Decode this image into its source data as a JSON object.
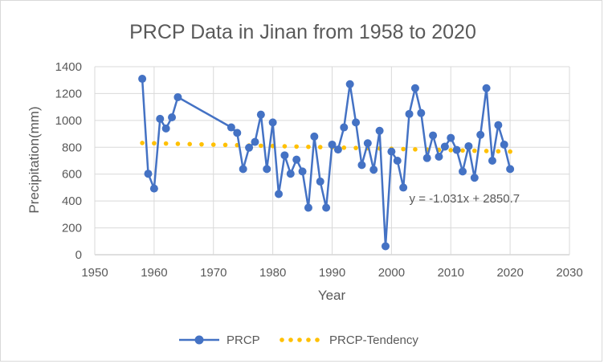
{
  "chart_data": {
    "type": "scatter",
    "title": "PRCP Data in Jinan from 1958 to 2020",
    "xlabel": "Year",
    "ylabel": "Precipitation(mm)",
    "xlim": [
      1950,
      2030
    ],
    "ylim": [
      0,
      1400
    ],
    "xticks": [
      1950,
      1960,
      1970,
      1980,
      1990,
      2000,
      2010,
      2020,
      2030
    ],
    "yticks": [
      0,
      200,
      400,
      600,
      800,
      1000,
      1200,
      1400
    ],
    "grid": "both",
    "legend_position": "bottom",
    "series": [
      {
        "name": "PRCP",
        "style": "line-with-markers",
        "color": "#4472c4",
        "points": [
          [
            1958,
            1310
          ],
          [
            1959,
            603
          ],
          [
            1960,
            493
          ],
          [
            1961,
            1012
          ],
          [
            1962,
            940
          ],
          [
            1963,
            1023
          ],
          [
            1964,
            1173
          ],
          [
            1973,
            948
          ],
          [
            1974,
            907
          ],
          [
            1975,
            638
          ],
          [
            1976,
            797
          ],
          [
            1977,
            840
          ],
          [
            1978,
            1043
          ],
          [
            1979,
            638
          ],
          [
            1980,
            985
          ],
          [
            1981,
            452
          ],
          [
            1982,
            740
          ],
          [
            1983,
            603
          ],
          [
            1984,
            708
          ],
          [
            1985,
            620
          ],
          [
            1986,
            350
          ],
          [
            1987,
            880
          ],
          [
            1988,
            545
          ],
          [
            1989,
            350
          ],
          [
            1990,
            820
          ],
          [
            1991,
            783
          ],
          [
            1992,
            948
          ],
          [
            1993,
            1270
          ],
          [
            1994,
            985
          ],
          [
            1995,
            668
          ],
          [
            1996,
            830
          ],
          [
            1997,
            633
          ],
          [
            1998,
            923
          ],
          [
            1999,
            63
          ],
          [
            2000,
            768
          ],
          [
            2001,
            700
          ],
          [
            2002,
            500
          ],
          [
            2003,
            1048
          ],
          [
            2004,
            1240
          ],
          [
            2005,
            1055
          ],
          [
            2006,
            720
          ],
          [
            2007,
            888
          ],
          [
            2008,
            730
          ],
          [
            2009,
            805
          ],
          [
            2010,
            870
          ],
          [
            2011,
            780
          ],
          [
            2012,
            620
          ],
          [
            2013,
            808
          ],
          [
            2014,
            573
          ],
          [
            2015,
            893
          ],
          [
            2016,
            1240
          ],
          [
            2017,
            700
          ],
          [
            2018,
            965
          ],
          [
            2019,
            820
          ],
          [
            2020,
            638
          ]
        ]
      },
      {
        "name": "PRCP-Tendency",
        "style": "dotted-trendline",
        "color": "#ffc000",
        "slope": -1.031,
        "intercept": 2850.7,
        "x_start": 1958,
        "x_end": 2020,
        "x_step": 2
      }
    ],
    "annotations": [
      {
        "text": "y = -1.031x + 2850.7",
        "x": 2003,
        "y": 390
      }
    ]
  }
}
